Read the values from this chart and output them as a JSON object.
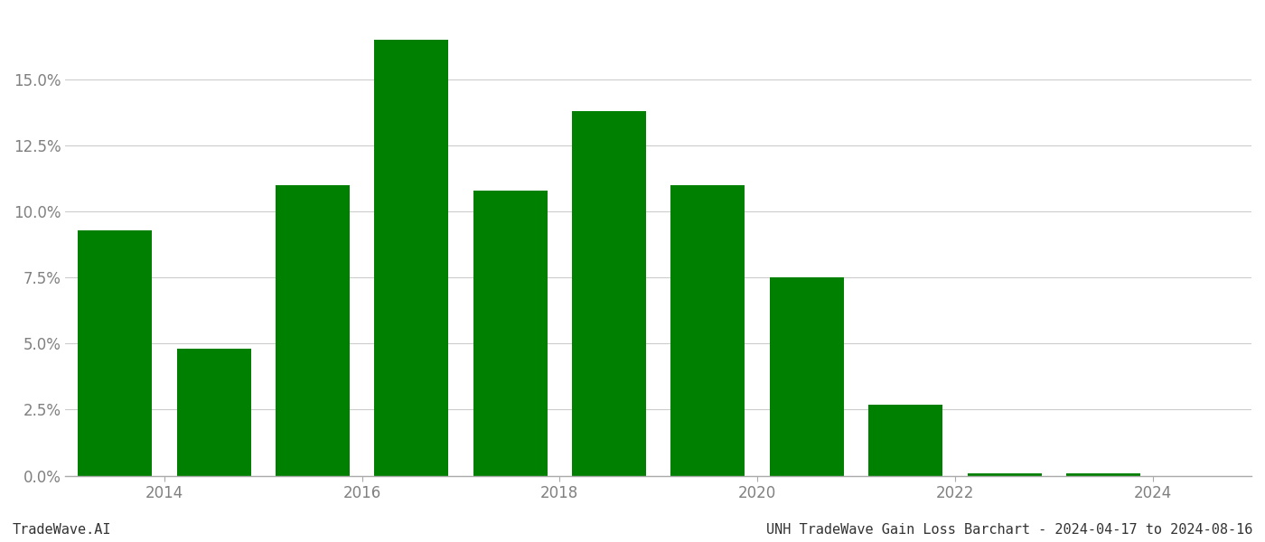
{
  "years": [
    2013.5,
    2014.5,
    2015.5,
    2016.5,
    2017.5,
    2018.5,
    2019.5,
    2020.5,
    2021.5,
    2022.5,
    2023.5
  ],
  "values": [
    0.093,
    0.048,
    0.11,
    0.165,
    0.108,
    0.138,
    0.11,
    0.075,
    0.027,
    0.001,
    0.001
  ],
  "bar_color": "#008000",
  "background_color": "#ffffff",
  "grid_color": "#cccccc",
  "tick_label_color": "#808080",
  "ylabel_ticks": [
    0.0,
    0.025,
    0.05,
    0.075,
    0.1,
    0.125,
    0.15
  ],
  "ylim": [
    0,
    0.175
  ],
  "xlabel_ticks": [
    2014,
    2016,
    2018,
    2020,
    2022,
    2024
  ],
  "xlim": [
    2013.0,
    2025.0
  ],
  "bottom_left_text": "TradeWave.AI",
  "bottom_right_text": "UNH TradeWave Gain Loss Barchart - 2024-04-17 to 2024-08-16",
  "bar_width": 0.75,
  "tick_fontsize": 12,
  "footer_fontsize": 11
}
